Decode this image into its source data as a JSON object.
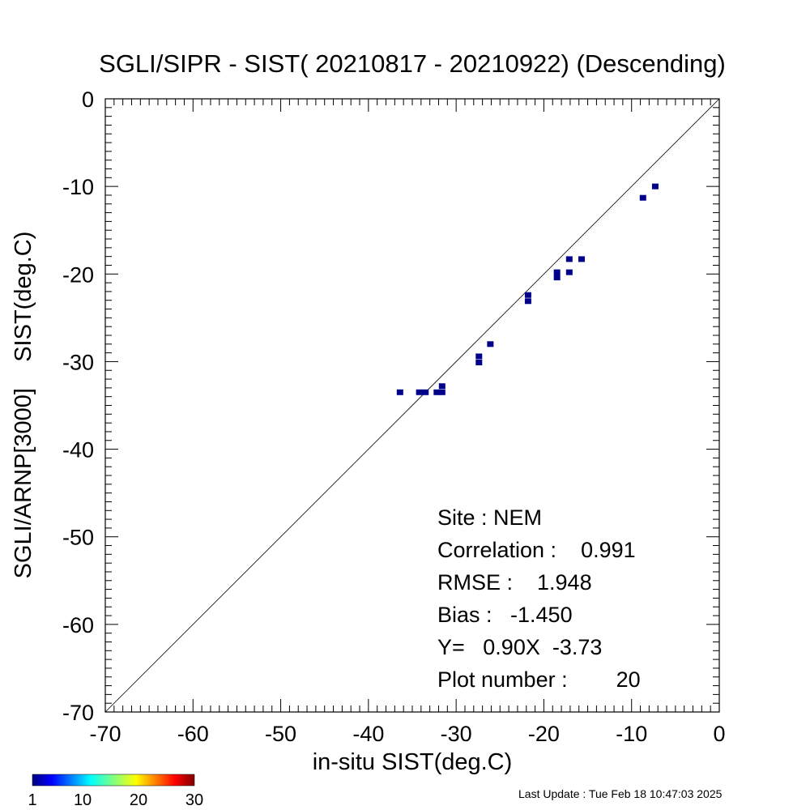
{
  "chart_data": {
    "type": "scatter",
    "title": "SGLI/SIPR - SIST( 20210817 - 20210922) (Descending)",
    "xlabel": "in-situ SIST(deg.C)",
    "ylabel": "SGLI/ARNP[3000]    SIST(deg.C)",
    "xlim": [
      -70,
      0
    ],
    "ylim": [
      -70,
      0
    ],
    "xticks": [
      "-70",
      "-60",
      "-50",
      "-40",
      "-30",
      "-20",
      "-10",
      "0"
    ],
    "yticks": [
      "0",
      "-10",
      "-20",
      "-30",
      "-40",
      "-50",
      "-60",
      "-70"
    ],
    "grid": false,
    "reference_line": "y=x",
    "point_color": "#00008b",
    "points": [
      {
        "x": -36.4,
        "y": -33.5
      },
      {
        "x": -34.2,
        "y": -33.5
      },
      {
        "x": -33.5,
        "y": -33.5
      },
      {
        "x": -32.2,
        "y": -33.5
      },
      {
        "x": -31.6,
        "y": -33.5
      },
      {
        "x": -31.6,
        "y": -32.8
      },
      {
        "x": -27.4,
        "y": -29.4
      },
      {
        "x": -27.4,
        "y": -30.1
      },
      {
        "x": -26.1,
        "y": -28.0
      },
      {
        "x": -21.8,
        "y": -22.4
      },
      {
        "x": -21.8,
        "y": -23.1
      },
      {
        "x": -18.5,
        "y": -19.8
      },
      {
        "x": -18.5,
        "y": -20.4
      },
      {
        "x": -17.1,
        "y": -18.3
      },
      {
        "x": -17.1,
        "y": -19.8
      },
      {
        "x": -15.7,
        "y": -18.3
      },
      {
        "x": -8.7,
        "y": -11.3
      },
      {
        "x": -7.3,
        "y": -10.0
      }
    ],
    "stats": {
      "site": "Site : NEM",
      "correlation": "Correlation :    0.991",
      "rmse": "RMSE :    1.948",
      "bias": "Bias :   -1.450",
      "regression": "Y=   0.90X  -3.73",
      "plot_number": "Plot number :        20"
    },
    "colorbar": {
      "ticks": [
        "1",
        "10",
        "20",
        "30"
      ],
      "range": [
        1,
        30
      ],
      "colormap": "jet"
    },
    "last_update": "Last Update : Tue Feb 18 10:47:03 2025"
  }
}
